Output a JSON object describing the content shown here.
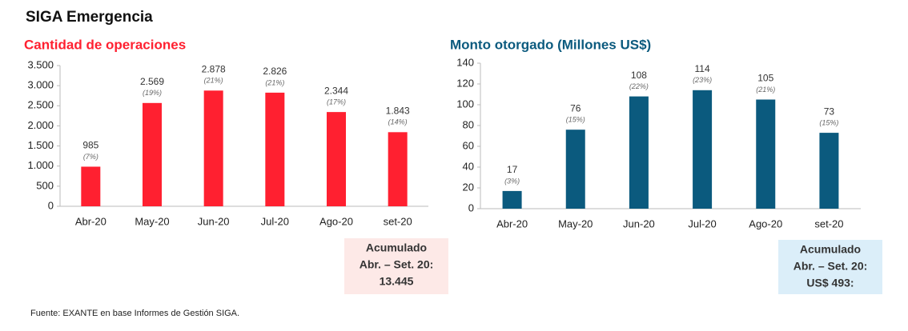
{
  "title": "SIGA Emergencia",
  "source": "Fuente: EXANTE en base Informes de Gestión SIGA.",
  "chart_data": [
    {
      "type": "bar",
      "title": "Cantidad de operaciones",
      "color": "#ff2030",
      "categories": [
        "Abr-20",
        "May-20",
        "Jun-20",
        "Jul-20",
        "Ago-20",
        "set-20"
      ],
      "values": [
        985,
        2569,
        2878,
        2826,
        2344,
        1843
      ],
      "value_labels": [
        "985",
        "2.569",
        "2.878",
        "2.826",
        "2.344",
        "1.843"
      ],
      "share_labels": [
        "(7%)",
        "(19%)",
        "(21%)",
        "(21%)",
        "(17%)",
        "(14%)"
      ],
      "ylim": [
        0,
        3500
      ],
      "yticks": [
        0,
        {
          "value": 500,
          "label": "500"
        },
        {
          "value": 1000,
          "label": "1.000"
        },
        {
          "value": 1500,
          "label": "1.500"
        },
        {
          "value": 2000,
          "label": "2.000"
        },
        {
          "value": 2500,
          "label": "2.500"
        },
        {
          "value": 3000,
          "label": "3.000"
        },
        {
          "value": 3500,
          "label": "3.500"
        }
      ],
      "grid": false,
      "annotation_lines": [
        "Acumulado",
        "Abr. – Set. 20:",
        "13.445"
      ]
    },
    {
      "type": "bar",
      "title": "Monto otorgado (Millones US$)",
      "color": "#0b5a7e",
      "categories": [
        "Abr-20",
        "May-20",
        "Jun-20",
        "Jul-20",
        "Ago-20",
        "set-20"
      ],
      "values": [
        17,
        76,
        108,
        114,
        105,
        73
      ],
      "share_labels": [
        "(3%)",
        "(15%)",
        "(22%)",
        "(23%)",
        "(21%)",
        "(15%)"
      ],
      "ylim": [
        0,
        140
      ],
      "yticks": [
        0,
        20,
        40,
        60,
        80,
        100,
        120,
        140
      ],
      "grid": false,
      "annotation_lines": [
        "Acumulado",
        "Abr. – Set. 20:",
        "US$ 493:"
      ]
    }
  ]
}
